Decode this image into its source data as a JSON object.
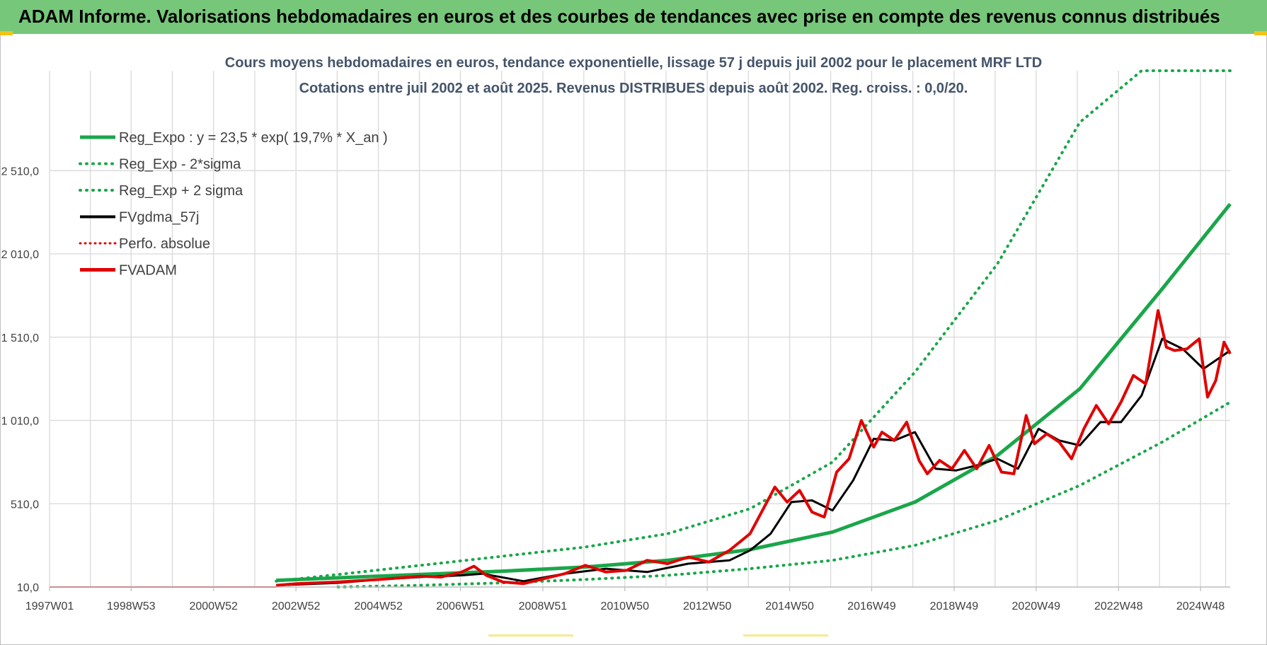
{
  "header": {
    "title": "ADAM Informe. Valorisations hebdomadaires en euros et des courbes de tendances avec prise en compte des revenus connus distribués"
  },
  "colors": {
    "header_bg": "#77c77b",
    "reg_expo": "#1aa64a",
    "sigma": "#1aa64a",
    "fvgdma": "#000000",
    "perfo": "#e00000",
    "fvadam": "#e00000",
    "title": "#44546a"
  },
  "chart_data": {
    "type": "line",
    "title": "Cours moyens hebdomadaires en euros, tendance exponentielle, lissage 57 j depuis juil 2002 pour le placement MRF LTD",
    "subtitle": "Cotations entre juil 2002 et août 2025. Revenus DISTRIBUES depuis août 2002. Reg. croiss. : 0,0/20.",
    "xlabel": "",
    "ylabel": "",
    "y_ticks": [
      10,
      510,
      1010,
      1510,
      2010,
      2510
    ],
    "y_tick_labels": [
      "10,0",
      "510,0",
      "1 010,0",
      "1 510,0",
      "2 010,0",
      "2 510,0"
    ],
    "ylim": [
      10,
      3110
    ],
    "x_ticks": [
      1997.0,
      1998.98,
      2000.98,
      2002.98,
      2004.98,
      2006.97,
      2008.97,
      2010.96,
      2012.96,
      2014.96,
      2016.95,
      2018.95,
      2020.94,
      2022.94,
      2024.93
    ],
    "x_tick_labels": [
      "1997W01",
      "1998W53",
      "2000W52",
      "2002W52",
      "2004W52",
      "2006W51",
      "2008W51",
      "2010W50",
      "2012W50",
      "2014W50",
      "2016W49",
      "2018W49",
      "2020W49",
      "2022W48",
      "2024W48"
    ],
    "xlim": [
      1997.0,
      2025.65
    ],
    "grid": true,
    "legend_position": "top-left",
    "legend": [
      {
        "label": "Reg_Expo : y = 23,5 * exp( 19,7% *  X_an )",
        "style": "solid",
        "color": "#1aa64a"
      },
      {
        "label": "Reg_Exp - 2*sigma",
        "style": "dotted",
        "color": "#1aa64a"
      },
      {
        "label": "Reg_Exp + 2 sigma",
        "style": "dotted",
        "color": "#1aa64a"
      },
      {
        "label": "FVgdma_57j",
        "style": "solid",
        "color": "#000000"
      },
      {
        "label": "Perfo. absolue",
        "style": "dotted",
        "color": "#e00000"
      },
      {
        "label": "FVADAM",
        "style": "solid",
        "color": "#e00000"
      }
    ],
    "series": [
      {
        "name": "Reg_Expo : y = 23,5 * exp( 19,7% *  X_an )",
        "style": "solid",
        "x": [
          2002.5,
          2004,
          2006,
          2008,
          2010,
          2012,
          2014,
          2016,
          2018,
          2020,
          2022,
          2024,
          2025.65
        ],
        "values": [
          50,
          65,
          85,
          105,
          130,
          170,
          235,
          340,
          520,
          800,
          1200,
          1800,
          2310
        ]
      },
      {
        "name": "Reg_Exp - 2*sigma",
        "style": "dotted",
        "x": [
          2004,
          2006,
          2008,
          2010,
          2012,
          2014,
          2016,
          2018,
          2020,
          2022,
          2024,
          2025.65
        ],
        "values": [
          10,
          20,
          35,
          55,
          80,
          120,
          170,
          260,
          410,
          620,
          880,
          1120
        ]
      },
      {
        "name": "Reg_Exp + 2 sigma",
        "style": "dotted",
        "x": [
          2002.5,
          2004,
          2006,
          2008,
          2010,
          2012,
          2014,
          2016,
          2018,
          2020,
          2022,
          2023.5,
          2025.65
        ],
        "values": [
          45,
          85,
          140,
          195,
          250,
          330,
          480,
          760,
          1300,
          1950,
          2800,
          3110,
          3110
        ]
      },
      {
        "name": "FVgdma_57j",
        "style": "solid",
        "x": [
          2002.5,
          2004,
          2005,
          2006,
          2007,
          2007.5,
          2008.5,
          2009.5,
          2010.5,
          2011.5,
          2012.5,
          2013.5,
          2014,
          2014.5,
          2015,
          2015.5,
          2016,
          2016.5,
          2017,
          2017.5,
          2018,
          2018.5,
          2019,
          2019.5,
          2020,
          2020.5,
          2021,
          2021.5,
          2022,
          2022.5,
          2023,
          2023.5,
          2024,
          2024.5,
          2025,
          2025.65
        ],
        "values": [
          20,
          35,
          55,
          70,
          80,
          90,
          45,
          90,
          120,
          100,
          150,
          170,
          230,
          330,
          520,
          530,
          470,
          650,
          900,
          890,
          940,
          720,
          710,
          740,
          780,
          720,
          960,
          890,
          860,
          1000,
          1000,
          1160,
          1500,
          1440,
          1320,
          1430
        ]
      },
      {
        "name": "FVADAM",
        "style": "solid",
        "x": [
          2002.5,
          2003,
          2004,
          2005,
          2006,
          2006.5,
          2007,
          2007.3,
          2007.6,
          2008,
          2008.5,
          2009,
          2009.5,
          2010,
          2010.5,
          2011,
          2011.5,
          2012,
          2012.5,
          2013,
          2013.5,
          2014,
          2014.3,
          2014.6,
          2014.9,
          2015.2,
          2015.5,
          2015.8,
          2016.1,
          2016.4,
          2016.7,
          2017,
          2017.2,
          2017.5,
          2017.8,
          2018.1,
          2018.3,
          2018.6,
          2018.9,
          2019.2,
          2019.5,
          2019.8,
          2020.1,
          2020.4,
          2020.7,
          2020.9,
          2021.2,
          2021.5,
          2021.8,
          2022.1,
          2022.4,
          2022.7,
          2023,
          2023.3,
          2023.6,
          2023.9,
          2024.1,
          2024.3,
          2024.6,
          2024.9,
          2025.1,
          2025.3,
          2025.5,
          2025.65
        ],
        "values": [
          20,
          30,
          40,
          55,
          75,
          70,
          100,
          135,
          80,
          40,
          30,
          60,
          90,
          140,
          100,
          110,
          170,
          150,
          190,
          160,
          230,
          330,
          470,
          610,
          520,
          590,
          460,
          430,
          700,
          780,
          1010,
          850,
          940,
          890,
          1000,
          770,
          690,
          770,
          720,
          830,
          720,
          860,
          700,
          690,
          1040,
          870,
          930,
          880,
          780,
          960,
          1100,
          990,
          1120,
          1280,
          1230,
          1670,
          1450,
          1430,
          1440,
          1500,
          1150,
          1250,
          1480,
          1410
        ]
      }
    ]
  }
}
